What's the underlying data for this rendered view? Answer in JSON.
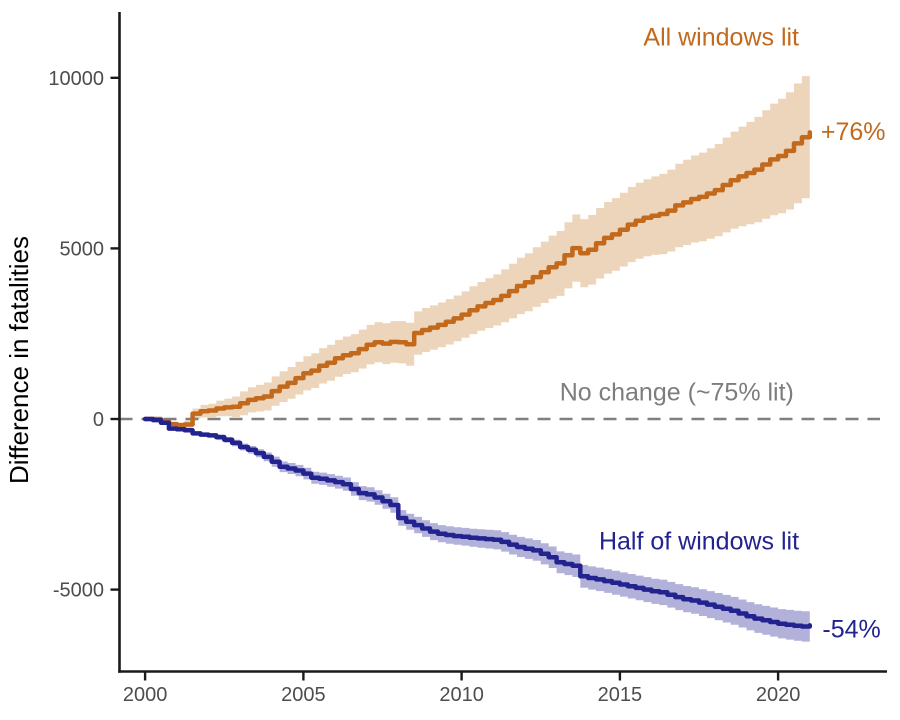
{
  "chart_data": {
    "type": "line",
    "title": "",
    "xlabel": "",
    "ylabel": "Difference in fatalities",
    "x_ticks": [
      2000,
      2005,
      2010,
      2015,
      2020
    ],
    "y_ticks": [
      10000,
      5000,
      0,
      -5000
    ],
    "xlim": [
      1999.19,
      2023.44
    ],
    "ylim": [
      -7400,
      11930
    ],
    "grid": "off",
    "legend": "direct-labels",
    "reference_line": {
      "y": 0,
      "style": "dashed",
      "color": "#7f7f7f",
      "label": "No change (~75% lit)"
    },
    "x": [
      2000,
      2000.25,
      2000.5,
      2000.75,
      2001,
      2001.25,
      2001.5,
      2001.75,
      2002,
      2002.25,
      2002.5,
      2002.75,
      2003,
      2003.25,
      2003.5,
      2003.75,
      2004,
      2004.25,
      2004.5,
      2004.75,
      2005,
      2005.25,
      2005.5,
      2005.75,
      2006,
      2006.25,
      2006.5,
      2006.75,
      2007,
      2007.25,
      2007.5,
      2007.75,
      2008,
      2008.25,
      2008.5,
      2008.75,
      2009,
      2009.25,
      2009.5,
      2009.75,
      2010,
      2010.25,
      2010.5,
      2010.75,
      2011,
      2011.25,
      2011.5,
      2011.75,
      2012,
      2012.25,
      2012.5,
      2012.75,
      2013,
      2013.25,
      2013.5,
      2013.75,
      2014,
      2014.25,
      2014.5,
      2014.75,
      2015,
      2015.25,
      2015.5,
      2015.75,
      2016,
      2016.25,
      2016.5,
      2016.75,
      2017,
      2017.25,
      2017.5,
      2017.75,
      2018,
      2018.25,
      2018.5,
      2018.75,
      2019,
      2019.25,
      2019.5,
      2019.75,
      2020,
      2020.25,
      2020.5,
      2020.75,
      2021
    ],
    "series": [
      {
        "name": "All windows lit",
        "end_label": "+76%",
        "color": "#c2691c",
        "band_color": "#edd5bb",
        "values": [
          0,
          0,
          -60,
          -150,
          -180,
          -160,
          160,
          230,
          250,
          310,
          340,
          360,
          460,
          560,
          610,
          660,
          820,
          950,
          1060,
          1200,
          1340,
          1420,
          1560,
          1650,
          1780,
          1870,
          1930,
          2050,
          2180,
          2250,
          2210,
          2260,
          2250,
          2190,
          2520,
          2610,
          2680,
          2760,
          2850,
          2950,
          3060,
          3190,
          3300,
          3400,
          3490,
          3610,
          3750,
          3900,
          4010,
          4160,
          4300,
          4450,
          4560,
          4800,
          5010,
          4860,
          4960,
          5150,
          5310,
          5410,
          5550,
          5700,
          5810,
          5900,
          5960,
          6010,
          6110,
          6260,
          6350,
          6450,
          6510,
          6610,
          6710,
          6860,
          7000,
          7110,
          7210,
          7310,
          7460,
          7610,
          7710,
          7860,
          8080,
          8260,
          8400
        ],
        "band_half": [
          0,
          15,
          35,
          55,
          80,
          115,
          150,
          185,
          200,
          230,
          260,
          300,
          350,
          370,
          390,
          410,
          430,
          450,
          465,
          480,
          500,
          510,
          520,
          530,
          540,
          550,
          560,
          570,
          580,
          590,
          600,
          610,
          620,
          630,
          635,
          645,
          650,
          655,
          665,
          672,
          680,
          700,
          715,
          732,
          750,
          775,
          800,
          825,
          850,
          875,
          900,
          925,
          950,
          970,
          985,
          1000,
          1020,
          1035,
          1050,
          1065,
          1080,
          1100,
          1115,
          1130,
          1150,
          1175,
          1200,
          1225,
          1250,
          1275,
          1300,
          1325,
          1350,
          1390,
          1425,
          1460,
          1500,
          1545,
          1590,
          1635,
          1680,
          1720,
          1755,
          1790,
          1830
        ]
      },
      {
        "name": "Half of windows lit",
        "end_label": "-54%",
        "color": "#23238f",
        "band_color": "#b2b1da",
        "values": [
          0,
          -30,
          -110,
          -280,
          -300,
          -330,
          -420,
          -455,
          -480,
          -530,
          -610,
          -700,
          -820,
          -900,
          -1000,
          -1110,
          -1250,
          -1400,
          -1450,
          -1510,
          -1600,
          -1720,
          -1750,
          -1800,
          -1850,
          -1910,
          -2050,
          -2170,
          -2210,
          -2300,
          -2410,
          -2520,
          -2900,
          -3010,
          -3110,
          -3210,
          -3300,
          -3360,
          -3400,
          -3430,
          -3450,
          -3480,
          -3500,
          -3520,
          -3540,
          -3600,
          -3680,
          -3750,
          -3800,
          -3850,
          -3950,
          -4050,
          -4200,
          -4250,
          -4300,
          -4610,
          -4660,
          -4700,
          -4750,
          -4800,
          -4850,
          -4900,
          -4950,
          -5000,
          -5050,
          -5080,
          -5150,
          -5220,
          -5280,
          -5320,
          -5380,
          -5440,
          -5500,
          -5560,
          -5620,
          -5700,
          -5780,
          -5850,
          -5900,
          -5950,
          -6000,
          -6030,
          -6060,
          -6080,
          -6050
        ],
        "band_half": [
          0,
          10,
          20,
          30,
          40,
          50,
          55,
          60,
          65,
          75,
          85,
          95,
          100,
          110,
          120,
          130,
          150,
          155,
          160,
          165,
          170,
          175,
          180,
          185,
          190,
          195,
          200,
          205,
          210,
          215,
          220,
          225,
          230,
          235,
          240,
          245,
          250,
          252,
          255,
          257,
          260,
          265,
          270,
          275,
          280,
          285,
          290,
          295,
          300,
          305,
          310,
          315,
          320,
          325,
          330,
          335,
          340,
          344,
          347,
          351,
          355,
          359,
          362,
          366,
          370,
          374,
          377,
          381,
          385,
          389,
          392,
          396,
          400,
          404,
          407,
          411,
          415,
          419,
          422,
          426,
          430,
          435,
          440,
          445,
          450
        ]
      }
    ],
    "annotations": [
      {
        "text": "All windows lit",
        "x": 2018.2,
        "y": 11200,
        "color": "#c2691c",
        "anchor": "middle",
        "size": 25
      },
      {
        "text": "+76%",
        "x": 2021.35,
        "y": 8430,
        "color": "#c2691c",
        "anchor": "start",
        "size": 25
      },
      {
        "text": "No change (~75% lit)",
        "x": 2016.8,
        "y": 800,
        "color": "#7d7d7d",
        "anchor": "middle",
        "size": 25
      },
      {
        "text": "Half of windows lit",
        "x": 2017.5,
        "y": -3570,
        "color": "#23238f",
        "anchor": "middle",
        "size": 25
      },
      {
        "text": "-54%",
        "x": 2021.4,
        "y": -6150,
        "color": "#23238f",
        "anchor": "start",
        "size": 25
      }
    ],
    "axis": {
      "color": "#1a1a1a",
      "tick_label_color": "#4d4d4d",
      "title_color": "#000000",
      "tick_label_size": 20,
      "title_size": 26
    }
  }
}
